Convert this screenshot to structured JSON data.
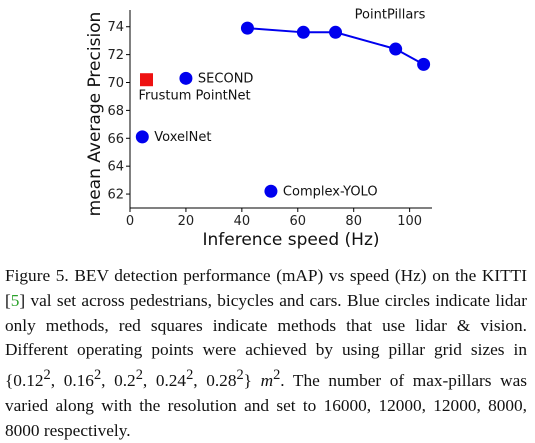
{
  "chart_data": {
    "type": "scatter",
    "title": "",
    "xlabel": "Inference speed (Hz)",
    "ylabel": "mean Average Precision",
    "xlim": [
      0,
      108
    ],
    "ylim": [
      61,
      75.2
    ],
    "xticks": [
      "0",
      "20",
      "40",
      "60",
      "80",
      "100"
    ],
    "xtick_values": [
      0,
      20,
      40,
      60,
      80,
      100
    ],
    "yticks": [
      "62",
      "64",
      "66",
      "68",
      "70",
      "72",
      "74"
    ],
    "ytick_values": [
      62,
      64,
      66,
      68,
      70,
      72,
      74
    ],
    "grid": false,
    "series": [
      {
        "name": "PointPillars",
        "marker": "circle",
        "color": "#0000ee",
        "connected": true,
        "points": [
          {
            "x": 42,
            "y": 73.9
          },
          {
            "x": 62,
            "y": 73.6
          },
          {
            "x": 73.5,
            "y": 73.6
          },
          {
            "x": 95,
            "y": 72.4
          },
          {
            "x": 105,
            "y": 71.3
          }
        ]
      },
      {
        "name": "SECOND",
        "marker": "circle",
        "color": "#0000ee",
        "connected": false,
        "points": [
          {
            "x": 20,
            "y": 70.3
          }
        ]
      },
      {
        "name": "VoxelNet",
        "marker": "circle",
        "color": "#0000ee",
        "connected": false,
        "points": [
          {
            "x": 4.4,
            "y": 66.1
          }
        ]
      },
      {
        "name": "Complex-YOLO",
        "marker": "circle",
        "color": "#0000ee",
        "connected": false,
        "points": [
          {
            "x": 50.4,
            "y": 62.2
          }
        ]
      },
      {
        "name": "Frustum PointNet",
        "marker": "square",
        "color": "#ee1111",
        "connected": false,
        "points": [
          {
            "x": 5.9,
            "y": 70.2
          }
        ]
      }
    ]
  },
  "caption": {
    "prefix": "Figure 5. BEV detection performance (mAP) vs speed (Hz) on the KITTI [",
    "ref": "5",
    "body": "] val set across pedestrians, bicycles and cars. Blue circles indicate lidar only methods, red squares indicate methods that use lidar & vision. Different operating points were achieved by using pillar grid sizes in ",
    "sizes": [
      "0.12",
      "0.16",
      "0.2",
      "0.24",
      "0.28"
    ],
    "exponent": "2",
    "unit": "m",
    "suffix": ". The number of max-pillars was varied along with the resolution and set to 16000, 12000, 12000, 8000, 8000 respectively."
  }
}
